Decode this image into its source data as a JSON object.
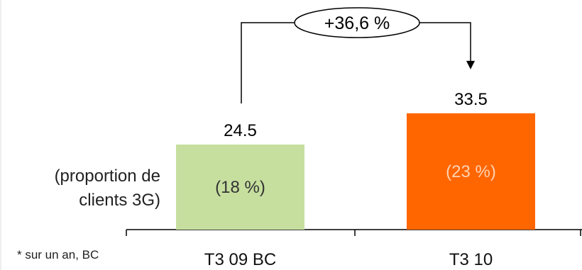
{
  "chart_data": {
    "type": "bar",
    "categories": [
      "T3 09 BC",
      "T3 10"
    ],
    "values": [
      24.5,
      33.5
    ],
    "value_labels": [
      "24.5",
      "33.5"
    ],
    "inner_labels": [
      "(18 %)",
      "(23 %)"
    ],
    "bar_colors": [
      "#c6df9f",
      "#ff6600"
    ],
    "inner_label_colors": [
      "#333333",
      "#ffd2b3"
    ],
    "change_label": "+36,6 %",
    "side_label_line1": "(proportion de",
    "side_label_line2": "clients 3G)",
    "footnote": "* sur un an, BC",
    "title": "",
    "xlabel": "",
    "ylabel": "",
    "ylim": [
      0,
      50
    ],
    "grid": false,
    "legend": "none"
  }
}
